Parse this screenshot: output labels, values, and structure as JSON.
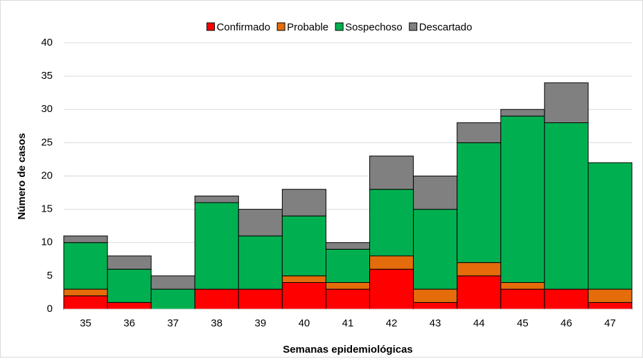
{
  "chart_data": {
    "type": "stacked-bar",
    "x_label": "Semanas epidemiológicas",
    "y_label": "Número de casos",
    "categories": [
      "35",
      "36",
      "37",
      "38",
      "39",
      "40",
      "41",
      "42",
      "43",
      "44",
      "45",
      "46",
      "47"
    ],
    "series": [
      {
        "name": "Confirmado",
        "color": "#ff0000",
        "values": [
          2,
          1,
          0,
          3,
          3,
          4,
          3,
          6,
          1,
          5,
          3,
          3,
          1
        ]
      },
      {
        "name": "Probable",
        "color": "#e46c0a",
        "values": [
          1,
          0,
          0,
          0,
          0,
          1,
          1,
          2,
          2,
          2,
          1,
          0,
          2
        ]
      },
      {
        "name": "Sospechoso",
        "color": "#00b050",
        "values": [
          7,
          5,
          3,
          13,
          8,
          9,
          5,
          10,
          12,
          18,
          25,
          25,
          19
        ]
      },
      {
        "name": "Descartado",
        "color": "#808080",
        "values": [
          1,
          2,
          2,
          1,
          4,
          4,
          1,
          5,
          5,
          3,
          1,
          6,
          0
        ]
      }
    ],
    "ylim": [
      0,
      40
    ],
    "yticks": [
      0,
      5,
      10,
      15,
      20,
      25,
      30,
      35,
      40
    ],
    "grid": true,
    "legend": "top"
  }
}
